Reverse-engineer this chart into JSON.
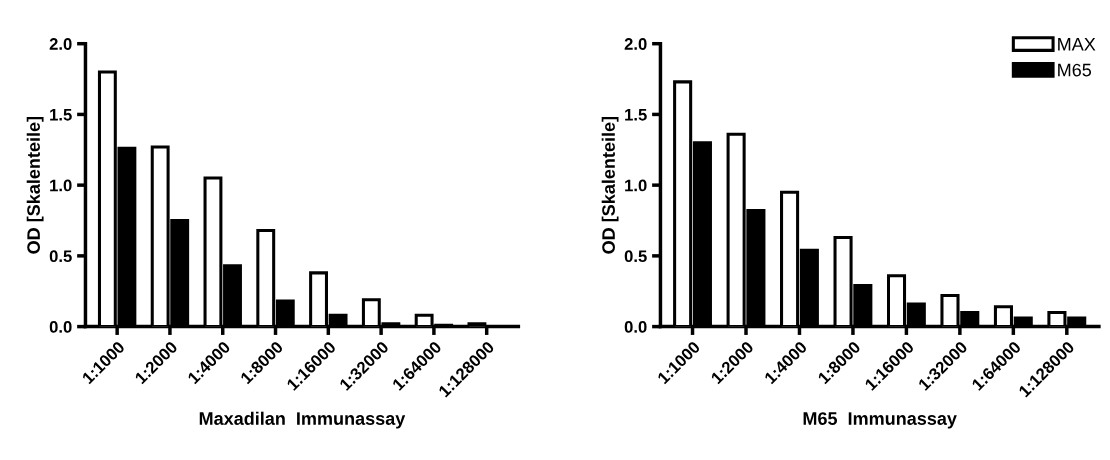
{
  "chart_data": [
    {
      "type": "bar",
      "xlabel": "Maxadilan  Immunassay",
      "ylabel": "OD [Skalenteile]",
      "categories": [
        "1:1000",
        "1:2000",
        "1:4000",
        "1:8000",
        "1:16000",
        "1:32000",
        "1:64000",
        "1:128000"
      ],
      "series": [
        {
          "color": "#ffffff",
          "values": [
            1.8,
            1.27,
            1.05,
            0.68,
            0.38,
            0.19,
            0.08,
            0.02
          ]
        },
        {
          "color": "#000000",
          "values": [
            1.26,
            0.75,
            0.43,
            0.18,
            0.08,
            0.02,
            0.01,
            0.0
          ]
        }
      ],
      "ylim": [
        0,
        2.0
      ],
      "yticks": [
        {
          "value": 0,
          "label": "0.0"
        },
        {
          "value": 0.5,
          "label": "0.5"
        },
        {
          "value": 1,
          "label": "1.0"
        },
        {
          "value": 1.5,
          "label": "1.5"
        },
        {
          "value": 2,
          "label": "2.0"
        }
      ],
      "grid": false,
      "legend": false
    },
    {
      "type": "bar",
      "xlabel": "M65  Immunassay",
      "ylabel": "OD [Skalenteile]",
      "categories": [
        "1:1000",
        "1:2000",
        "1:4000",
        "1:8000",
        "1:16000",
        "1:32000",
        "1:64000",
        "1:128000"
      ],
      "series": [
        {
          "name": "MAX",
          "color": "#ffffff",
          "values": [
            1.73,
            1.36,
            0.95,
            0.63,
            0.36,
            0.22,
            0.14,
            0.1
          ]
        },
        {
          "name": "M65",
          "color": "#000000",
          "values": [
            1.3,
            0.82,
            0.54,
            0.29,
            0.16,
            0.1,
            0.06,
            0.06
          ]
        }
      ],
      "ylim": [
        0,
        2.0
      ],
      "yticks": [
        {
          "value": 0,
          "label": "0.0"
        },
        {
          "value": 0.5,
          "label": "0.5"
        },
        {
          "value": 1,
          "label": "1.0"
        },
        {
          "value": 1.5,
          "label": "1.5"
        },
        {
          "value": 2,
          "label": "2.0"
        }
      ],
      "grid": false,
      "legend": "top right"
    }
  ]
}
